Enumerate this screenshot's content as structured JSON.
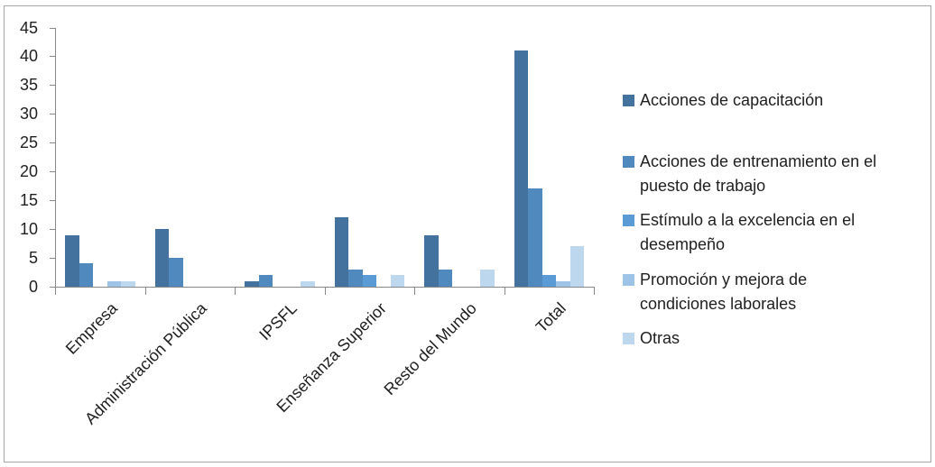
{
  "chart_data": {
    "type": "bar",
    "title": "",
    "xlabel": "",
    "ylabel": "",
    "categories": [
      "Empresa",
      "Administración Pública",
      "IPSFL",
      "Enseñanza Superior",
      "Resto del Mundo",
      "Total"
    ],
    "series": [
      {
        "name": "Acciones de capacitación",
        "color": "#44729E",
        "values": [
          9,
          10,
          1,
          12,
          9,
          41
        ],
        "lines": [
          "Acciones de capacitación"
        ]
      },
      {
        "name": "Acciones de entrenamiento en el puesto de trabajo",
        "color": "#5089BD",
        "values": [
          4,
          5,
          2,
          3,
          3,
          17
        ],
        "lines": [
          "Acciones de entrenamiento en el",
          "puesto de trabajo"
        ]
      },
      {
        "name": "Estímulo a la excelencia en el desempeño",
        "color": "#5B9BD5",
        "values": [
          0,
          0,
          0,
          2,
          0,
          2
        ],
        "lines": [
          "Estímulo a la excelencia en el",
          "desempeño"
        ]
      },
      {
        "name": "Promoción y mejora de condiciones laborales",
        "color": "#9DC3E6",
        "values": [
          1,
          0,
          0,
          0,
          0,
          1
        ],
        "lines": [
          "Promoción y mejora de",
          "condiciones laborales"
        ]
      },
      {
        "name": "Otras",
        "color": "#BDD7EE",
        "values": [
          1,
          0,
          1,
          2,
          3,
          7
        ],
        "lines": [
          "Otras"
        ]
      }
    ],
    "ylim": [
      0,
      45
    ],
    "yticks": [
      0,
      5,
      10,
      15,
      20,
      25,
      30,
      35,
      40,
      45
    ],
    "grid": false,
    "legend_position": "right",
    "axis_color": "#898989",
    "frame_color": "#a6a6a6",
    "text_color": "#1f1f1f"
  }
}
